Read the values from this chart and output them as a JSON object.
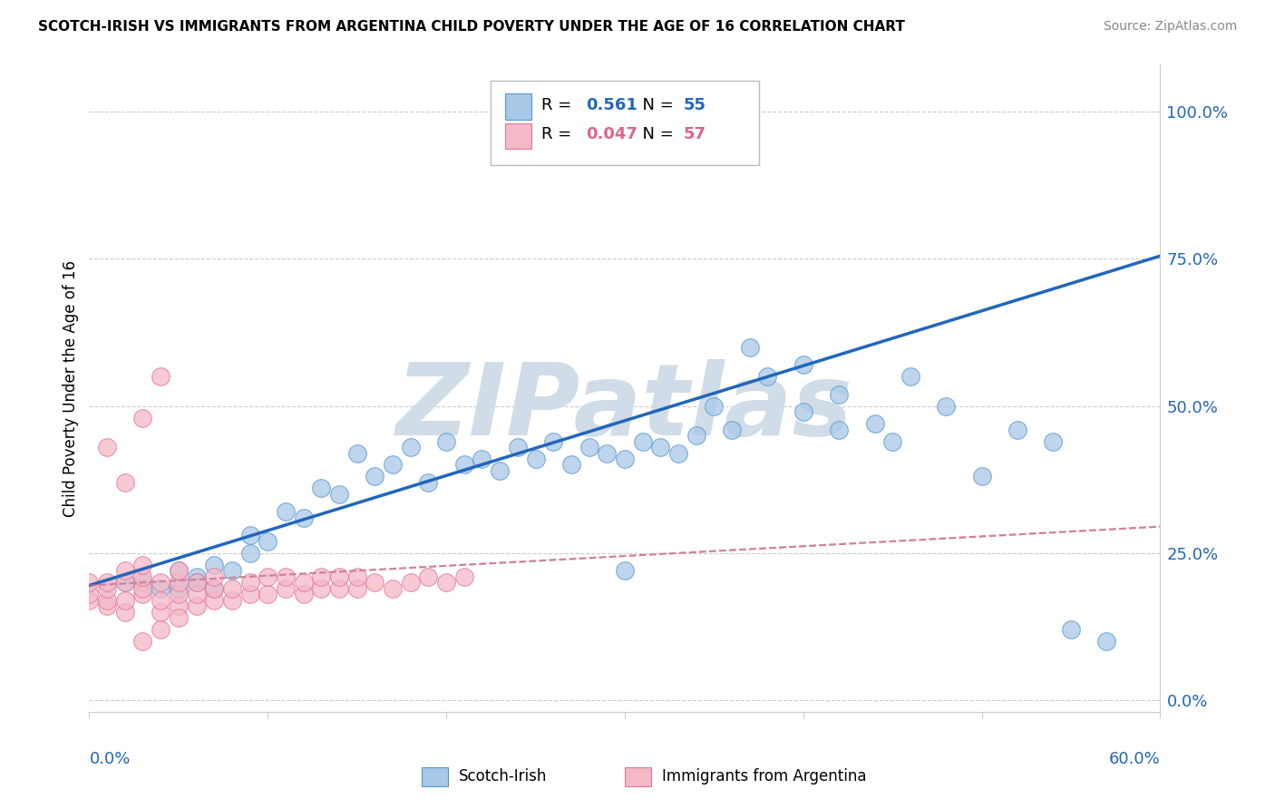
{
  "title": "SCOTCH-IRISH VS IMMIGRANTS FROM ARGENTINA CHILD POVERTY UNDER THE AGE OF 16 CORRELATION CHART",
  "source": "Source: ZipAtlas.com",
  "ylabel": "Child Poverty Under the Age of 16",
  "ytick_labels": [
    "0.0%",
    "25.0%",
    "50.0%",
    "75.0%",
    "100.0%"
  ],
  "ytick_values": [
    0.0,
    0.25,
    0.5,
    0.75,
    1.0
  ],
  "xlim": [
    0.0,
    0.6
  ],
  "ylim": [
    -0.02,
    1.08
  ],
  "blue_R": "0.561",
  "blue_N": "55",
  "pink_R": "0.047",
  "pink_N": "57",
  "blue_dot_color": "#A8C8E8",
  "blue_dot_edge": "#5599CC",
  "pink_dot_color": "#F5B8C8",
  "pink_dot_edge": "#E07898",
  "blue_line_color": "#2266BB",
  "pink_line_color": "#DD6688",
  "dashed_line_color": "#BBBBCC",
  "watermark_color": "#D0DCE8",
  "legend_label_blue": "Scotch-Irish",
  "legend_label_pink": "Immigrants from Argentina",
  "blue_line_x0": 0.0,
  "blue_line_y0": 0.195,
  "blue_line_x1": 0.6,
  "blue_line_y1": 0.755,
  "pink_line_x0": 0.0,
  "pink_line_y0": 0.195,
  "pink_line_x1": 0.6,
  "pink_line_y1": 0.295,
  "blue_scatter_x": [
    0.02,
    0.03,
    0.04,
    0.05,
    0.05,
    0.06,
    0.06,
    0.07,
    0.07,
    0.08,
    0.09,
    0.09,
    0.1,
    0.11,
    0.12,
    0.13,
    0.14,
    0.15,
    0.16,
    0.17,
    0.18,
    0.19,
    0.2,
    0.21,
    0.22,
    0.23,
    0.24,
    0.25,
    0.26,
    0.27,
    0.28,
    0.29,
    0.3,
    0.31,
    0.32,
    0.33,
    0.34,
    0.35,
    0.36,
    0.37,
    0.38,
    0.4,
    0.42,
    0.44,
    0.46,
    0.48,
    0.5,
    0.52,
    0.54,
    0.4,
    0.42,
    0.45,
    0.3,
    0.55,
    0.57
  ],
  "blue_scatter_y": [
    0.2,
    0.2,
    0.19,
    0.22,
    0.19,
    0.21,
    0.2,
    0.19,
    0.23,
    0.22,
    0.25,
    0.28,
    0.27,
    0.32,
    0.31,
    0.36,
    0.35,
    0.42,
    0.38,
    0.4,
    0.43,
    0.37,
    0.44,
    0.4,
    0.41,
    0.39,
    0.43,
    0.41,
    0.44,
    0.4,
    0.43,
    0.42,
    0.41,
    0.44,
    0.43,
    0.42,
    0.45,
    0.5,
    0.46,
    0.6,
    0.55,
    0.49,
    0.52,
    0.47,
    0.55,
    0.5,
    0.38,
    0.46,
    0.44,
    0.57,
    0.46,
    0.44,
    0.22,
    0.12,
    0.1
  ],
  "blue_scatter_sizes": [
    80,
    80,
    80,
    80,
    80,
    80,
    80,
    80,
    80,
    80,
    80,
    80,
    80,
    80,
    80,
    80,
    80,
    80,
    80,
    80,
    80,
    80,
    80,
    80,
    80,
    80,
    80,
    80,
    80,
    80,
    80,
    80,
    80,
    80,
    80,
    80,
    80,
    80,
    80,
    80,
    80,
    80,
    80,
    80,
    80,
    80,
    80,
    80,
    80,
    80,
    80,
    80,
    80,
    80,
    80
  ],
  "pink_scatter_x": [
    0.0,
    0.0,
    0.0,
    0.01,
    0.01,
    0.01,
    0.01,
    0.02,
    0.02,
    0.02,
    0.02,
    0.03,
    0.03,
    0.03,
    0.03,
    0.04,
    0.04,
    0.04,
    0.05,
    0.05,
    0.05,
    0.05,
    0.06,
    0.06,
    0.06,
    0.07,
    0.07,
    0.07,
    0.08,
    0.08,
    0.09,
    0.09,
    0.1,
    0.1,
    0.11,
    0.11,
    0.12,
    0.12,
    0.13,
    0.13,
    0.14,
    0.14,
    0.15,
    0.15,
    0.16,
    0.17,
    0.18,
    0.19,
    0.2,
    0.21,
    0.01,
    0.02,
    0.03,
    0.04,
    0.03,
    0.04,
    0.05
  ],
  "pink_scatter_y": [
    0.17,
    0.18,
    0.2,
    0.16,
    0.17,
    0.19,
    0.2,
    0.15,
    0.17,
    0.2,
    0.22,
    0.18,
    0.19,
    0.21,
    0.23,
    0.15,
    0.17,
    0.2,
    0.16,
    0.18,
    0.2,
    0.22,
    0.16,
    0.18,
    0.2,
    0.17,
    0.19,
    0.21,
    0.17,
    0.19,
    0.18,
    0.2,
    0.18,
    0.21,
    0.19,
    0.21,
    0.18,
    0.2,
    0.19,
    0.21,
    0.19,
    0.21,
    0.19,
    0.21,
    0.2,
    0.19,
    0.2,
    0.21,
    0.2,
    0.21,
    0.43,
    0.37,
    0.48,
    0.55,
    0.1,
    0.12,
    0.14
  ]
}
